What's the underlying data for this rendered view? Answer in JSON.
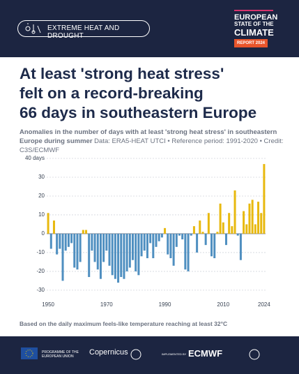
{
  "header": {
    "tag": "EXTREME HEAT AND DROUGHT",
    "report_lines": [
      "EUROPEAN",
      "STATE OF THE",
      "CLIMATE"
    ],
    "report_year": "REPORT 2024"
  },
  "chart_data": {
    "type": "bar",
    "title_lines": [
      "At least 'strong heat stress'",
      "felt on a record-breaking",
      "66 days in southeastern Europe"
    ],
    "subtitle": "Anomalies in the number of days with at least 'strong heat stress' in southeastern Europe during summer",
    "source": "Data: ERA5-HEAT UTCI • Reference period: 1991-2020 • Credit: C3S/ECMWF",
    "note": "Based on the daily maximum feels-like temperature reaching at least 32°C",
    "x": [
      1950,
      1951,
      1952,
      1953,
      1954,
      1955,
      1956,
      1957,
      1958,
      1959,
      1960,
      1961,
      1962,
      1963,
      1964,
      1965,
      1966,
      1967,
      1968,
      1969,
      1970,
      1971,
      1972,
      1973,
      1974,
      1975,
      1976,
      1977,
      1978,
      1979,
      1980,
      1981,
      1982,
      1983,
      1984,
      1985,
      1986,
      1987,
      1988,
      1989,
      1990,
      1991,
      1992,
      1993,
      1994,
      1995,
      1996,
      1997,
      1998,
      1999,
      2000,
      2001,
      2002,
      2003,
      2004,
      2005,
      2006,
      2007,
      2008,
      2009,
      2010,
      2011,
      2012,
      2013,
      2014,
      2015,
      2016,
      2017,
      2018,
      2019,
      2020,
      2021,
      2022,
      2023,
      2024
    ],
    "values": [
      11,
      -8,
      7,
      -11,
      -8,
      -25,
      -9,
      -7,
      -5,
      -18,
      -19,
      -15,
      2,
      2,
      -23,
      -9,
      -15,
      -19,
      -24,
      -15,
      -9,
      -17,
      -22,
      -24,
      -26,
      -23,
      -24,
      -20,
      -18,
      -14,
      -20,
      -22,
      -12,
      -9,
      -13,
      -5,
      -13,
      -7,
      -4,
      -2,
      3,
      -11,
      -13,
      -17,
      -7,
      -1,
      -3,
      -19,
      -20,
      -1,
      4,
      -10,
      7,
      1,
      -6,
      11,
      -12,
      -13,
      1,
      16,
      6,
      -6,
      11,
      4,
      23,
      -1,
      -14,
      12,
      5,
      16,
      18,
      5,
      17,
      11,
      37
    ],
    "positive_color": "#e8b90f",
    "negative_color": "#4f8fc0",
    "xlim": [
      1949.5,
      2024.5
    ],
    "xticks": [
      1950,
      1970,
      1990,
      2010,
      2024
    ],
    "ylim": [
      -33,
      42
    ],
    "yticks": [
      {
        "value": 40,
        "label": "40 days"
      },
      30,
      20,
      10,
      0,
      -10,
      -20,
      -30
    ],
    "grid": true
  },
  "footer": {
    "eu": "PROGRAMME OF THE EUROPEAN UNION",
    "copernicus": "Copernicus",
    "implemented": "IMPLEMENTED BY",
    "ecmwf": "ECMWF"
  }
}
